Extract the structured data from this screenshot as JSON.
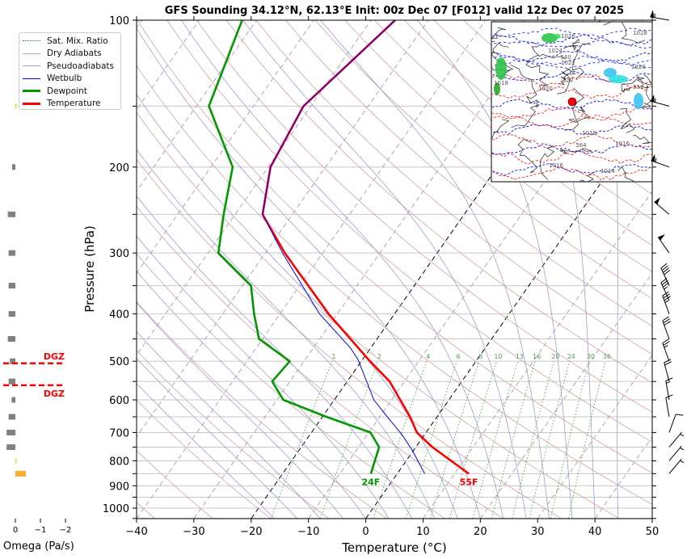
{
  "chart_data": {
    "type": "line",
    "title": "GFS Sounding 34.12°N, 62.13°E Init: 00z Dec 07 [F012] valid 12z Dec 07 2025",
    "xlabel": "Temperature (°C)",
    "ylabel": "Pressure (hPa)",
    "xlim": [
      -40,
      50
    ],
    "ylim": [
      1050,
      100
    ],
    "x_ticks": [
      "−40",
      "−30",
      "−20",
      "−10",
      "0",
      "10",
      "20",
      "30",
      "40",
      "50"
    ],
    "x_tick_values": [
      -40,
      -30,
      -20,
      -10,
      0,
      10,
      20,
      30,
      40,
      50
    ],
    "y_ticks": [
      "100",
      "200",
      "300",
      "400",
      "500",
      "600",
      "700",
      "800",
      "900",
      "1000"
    ],
    "y_tick_values": [
      100,
      200,
      300,
      400,
      500,
      600,
      700,
      800,
      900,
      1000
    ],
    "grid": true,
    "legend_position": "top-left",
    "series": [
      {
        "name": "Temperature",
        "color": "#ff0000",
        "p": [
          100,
          150,
          200,
          250,
          300,
          400,
          500,
          550,
          600,
          650,
          700,
          750,
          850
        ],
        "t": [
          -55.8,
          -61.3,
          -59.6,
          -55.2,
          -46.6,
          -31.5,
          -18.5,
          -12.6,
          -8.5,
          -4.7,
          -1.6,
          2.9,
          12.5
        ]
      },
      {
        "name": "Dewpoint",
        "color": "#009900",
        "p": [
          100,
          150,
          200,
          250,
          300,
          350,
          400,
          450,
          500,
          550,
          600,
          650,
          700,
          750,
          850
        ],
        "t": [
          -82.5,
          -77.8,
          -66.2,
          -62,
          -58.2,
          -48.5,
          -44.5,
          -40.6,
          -32.5,
          -33.1,
          -28.9,
          -19.3,
          -9.7,
          -6.4,
          -4.6
        ]
      },
      {
        "name": "Wetbulb",
        "color": "#0000ff",
        "p": [
          100,
          150,
          200,
          250,
          300,
          400,
          469,
          496,
          600,
          652,
          705,
          760,
          850
        ],
        "t": [
          -55.8,
          -61.3,
          -59.6,
          -55.2,
          -47,
          -33.1,
          -23.6,
          -20.8,
          -13.1,
          -8.5,
          -4.1,
          -0.3,
          4.8
        ]
      }
    ],
    "surface_labels": {
      "temperature": "55F",
      "dewpoint": "24F"
    },
    "mixing_ratio_labels": [
      "1",
      "2",
      "4",
      "6",
      "8",
      "10",
      "13",
      "16",
      "20",
      "24",
      "30",
      "36"
    ],
    "mixing_ratio_values": [
      1,
      2,
      4,
      6,
      8,
      10,
      13,
      16,
      20,
      24,
      30,
      36
    ],
    "highlight_isotherms": [
      0,
      -20
    ],
    "wind_barbs": [
      {
        "p": 100,
        "dir": 280,
        "kt": 55
      },
      {
        "p": 150,
        "dir": 285,
        "kt": 55
      },
      {
        "p": 200,
        "dir": 290,
        "kt": 55
      },
      {
        "p": 250,
        "dir": 310,
        "kt": 50
      },
      {
        "p": 300,
        "dir": 325,
        "kt": 50
      },
      {
        "p": 350,
        "dir": 335,
        "kt": 40
      },
      {
        "p": 375,
        "dir": 335,
        "kt": 35
      },
      {
        "p": 400,
        "dir": 340,
        "kt": 35
      },
      {
        "p": 450,
        "dir": 340,
        "kt": 30
      },
      {
        "p": 500,
        "dir": 340,
        "kt": 25
      },
      {
        "p": 550,
        "dir": 345,
        "kt": 20
      },
      {
        "p": 600,
        "dir": 350,
        "kt": 15
      },
      {
        "p": 650,
        "dir": 350,
        "kt": 10
      },
      {
        "p": 700,
        "dir": 20,
        "kt": 10
      },
      {
        "p": 750,
        "dir": 40,
        "kt": 5
      },
      {
        "p": 800,
        "dir": 40,
        "kt": 5
      },
      {
        "p": 850,
        "dir": 40,
        "kt": 5
      }
    ],
    "omega": {
      "xlabel": "Omega (Pa/s)",
      "ticks": [
        "0",
        "−1",
        "−2"
      ],
      "tick_values": [
        0,
        -1,
        -2
      ],
      "levels": [
        150,
        200,
        250,
        300,
        350,
        400,
        450,
        500,
        550,
        600,
        650,
        700,
        750,
        800,
        850
      ],
      "values": [
        -0.05,
        0.13,
        0.3,
        0.27,
        0.27,
        0.27,
        0.3,
        0.22,
        0.27,
        0.15,
        0.27,
        0.35,
        0.35,
        -0.05,
        -0.42
      ],
      "dgz_label": "DGZ",
      "dgz_bounds_hpa": [
        505,
        560
      ]
    }
  },
  "legend": {
    "items": [
      {
        "label": "Sat. Mix. Ratio",
        "color": "#2e8b2e"
      },
      {
        "label": "Dry Adiabats",
        "color": "#d9a0a0"
      },
      {
        "label": "Pseudoadiabats",
        "color": "#9d9dda"
      },
      {
        "label": "Wetbulb",
        "color": "#0000ff"
      },
      {
        "label": "Dewpoint",
        "color": "#009900"
      },
      {
        "label": "Temperature",
        "color": "#ff0000"
      }
    ]
  },
  "map_inset": {
    "contour_labels": [
      "1026",
      "1024",
      "540",
      "1022",
      "552",
      "1020",
      "1018",
      "564",
      "1016",
      "1014",
      "1028",
      "1018",
      "1026",
      "552",
      "1016"
    ]
  }
}
